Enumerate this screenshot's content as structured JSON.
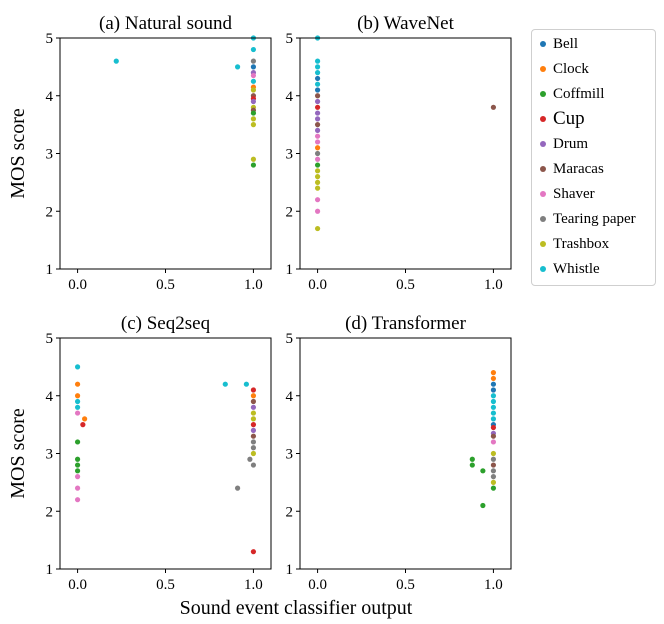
{
  "figure": {
    "xlabel": "Sound event classifier output",
    "legend_entries": [
      "Bell",
      "Clock",
      "Coffmill",
      "Cup",
      "Drum",
      "Maracas",
      "Shaver",
      "Tearing paper",
      "Trashbox",
      "Whistle"
    ],
    "legend_colors": [
      "#1f77b4",
      "#ff7f0e",
      "#2ca02c",
      "#d62728",
      "#9467bd",
      "#8c564b",
      "#e377c2",
      "#7f7f7f",
      "#bcbd22",
      "#17becf"
    ],
    "legend_placement": "right"
  },
  "chart_data": [
    {
      "type": "scatter",
      "title": "(a) Natural sound",
      "xlabel": "",
      "ylabel": "MOS score",
      "xlim": [
        -0.1,
        1.1
      ],
      "ylim": [
        1,
        5
      ],
      "xticks": [
        "0.0",
        "0.5",
        "1.0"
      ],
      "yticks": [
        "1",
        "2",
        "3",
        "4",
        "5"
      ],
      "grid": false,
      "points": [
        {
          "series": "Whistle",
          "x": 0.22,
          "y": 4.6
        },
        {
          "series": "Whistle",
          "x": 0.91,
          "y": 4.5
        },
        {
          "series": "Whistle",
          "x": 1.0,
          "y": 5.0
        },
        {
          "series": "Whistle",
          "x": 1.0,
          "y": 4.8
        },
        {
          "series": "Tearing paper",
          "x": 1.0,
          "y": 4.6
        },
        {
          "series": "Bell",
          "x": 1.0,
          "y": 4.5
        },
        {
          "series": "Drum",
          "x": 1.0,
          "y": 4.4
        },
        {
          "series": "Shaver",
          "x": 1.0,
          "y": 4.35
        },
        {
          "series": "Whistle",
          "x": 1.0,
          "y": 4.25
        },
        {
          "series": "Clock",
          "x": 1.0,
          "y": 4.15
        },
        {
          "series": "Trashbox",
          "x": 1.0,
          "y": 4.1
        },
        {
          "series": "Maracas",
          "x": 1.0,
          "y": 4.0
        },
        {
          "series": "Cup",
          "x": 1.0,
          "y": 3.95
        },
        {
          "series": "Drum",
          "x": 1.0,
          "y": 3.9
        },
        {
          "series": "Trashbox",
          "x": 1.0,
          "y": 3.8
        },
        {
          "series": "Maracas",
          "x": 1.0,
          "y": 3.75
        },
        {
          "series": "Coffmill",
          "x": 1.0,
          "y": 3.7
        },
        {
          "series": "Trashbox",
          "x": 1.0,
          "y": 3.6
        },
        {
          "series": "Trashbox",
          "x": 1.0,
          "y": 3.5
        },
        {
          "series": "Trashbox",
          "x": 1.0,
          "y": 2.9
        },
        {
          "series": "Coffmill",
          "x": 1.0,
          "y": 2.8
        }
      ]
    },
    {
      "type": "scatter",
      "title": "(b) WaveNet",
      "xlabel": "",
      "ylabel": "",
      "xlim": [
        -0.1,
        1.1
      ],
      "ylim": [
        1,
        5
      ],
      "xticks": [
        "0.0",
        "0.5",
        "1.0"
      ],
      "yticks": [
        "1",
        "2",
        "3",
        "4",
        "5"
      ],
      "grid": false,
      "points": [
        {
          "series": "Whistle",
          "x": 0.0,
          "y": 5.0
        },
        {
          "series": "Whistle",
          "x": 0.0,
          "y": 4.6
        },
        {
          "series": "Whistle",
          "x": 0.0,
          "y": 4.5
        },
        {
          "series": "Whistle",
          "x": 0.0,
          "y": 4.4
        },
        {
          "series": "Bell",
          "x": 0.0,
          "y": 4.3
        },
        {
          "series": "Whistle",
          "x": 0.0,
          "y": 4.2
        },
        {
          "series": "Bell",
          "x": 0.0,
          "y": 4.1
        },
        {
          "series": "Maracas",
          "x": 0.0,
          "y": 4.0
        },
        {
          "series": "Drum",
          "x": 0.0,
          "y": 3.9
        },
        {
          "series": "Cup",
          "x": 0.0,
          "y": 3.8
        },
        {
          "series": "Drum",
          "x": 0.0,
          "y": 3.7
        },
        {
          "series": "Drum",
          "x": 0.0,
          "y": 3.6
        },
        {
          "series": "Maracas",
          "x": 0.0,
          "y": 3.5
        },
        {
          "series": "Drum",
          "x": 0.0,
          "y": 3.4
        },
        {
          "series": "Shaver",
          "x": 0.0,
          "y": 3.3
        },
        {
          "series": "Shaver",
          "x": 0.0,
          "y": 3.2
        },
        {
          "series": "Clock",
          "x": 0.0,
          "y": 3.1
        },
        {
          "series": "Tearing paper",
          "x": 0.0,
          "y": 3.0
        },
        {
          "series": "Shaver",
          "x": 0.0,
          "y": 2.9
        },
        {
          "series": "Coffmill",
          "x": 0.0,
          "y": 2.8
        },
        {
          "series": "Trashbox",
          "x": 0.0,
          "y": 2.7
        },
        {
          "series": "Trashbox",
          "x": 0.0,
          "y": 2.6
        },
        {
          "series": "Trashbox",
          "x": 0.0,
          "y": 2.5
        },
        {
          "series": "Trashbox",
          "x": 0.0,
          "y": 2.4
        },
        {
          "series": "Shaver",
          "x": 0.0,
          "y": 2.2
        },
        {
          "series": "Shaver",
          "x": 0.0,
          "y": 2.0
        },
        {
          "series": "Trashbox",
          "x": 0.0,
          "y": 1.7
        },
        {
          "series": "Maracas",
          "x": 1.0,
          "y": 3.8
        }
      ]
    },
    {
      "type": "scatter",
      "title": "(c) Seq2seq",
      "xlabel": "",
      "ylabel": "MOS score",
      "xlim": [
        -0.1,
        1.1
      ],
      "ylim": [
        1,
        5
      ],
      "xticks": [
        "0.0",
        "0.5",
        "1.0"
      ],
      "yticks": [
        "1",
        "2",
        "3",
        "4",
        "5"
      ],
      "grid": false,
      "points": [
        {
          "series": "Whistle",
          "x": 0.0,
          "y": 4.5
        },
        {
          "series": "Clock",
          "x": 0.0,
          "y": 4.2
        },
        {
          "series": "Clock",
          "x": 0.0,
          "y": 4.0
        },
        {
          "series": "Whistle",
          "x": 0.0,
          "y": 3.9
        },
        {
          "series": "Whistle",
          "x": 0.0,
          "y": 3.8
        },
        {
          "series": "Shaver",
          "x": 0.0,
          "y": 3.7
        },
        {
          "series": "Coffmill",
          "x": 0.0,
          "y": 3.2
        },
        {
          "series": "Coffmill",
          "x": 0.0,
          "y": 2.9
        },
        {
          "series": "Coffmill",
          "x": 0.0,
          "y": 2.8
        },
        {
          "series": "Coffmill",
          "x": 0.0,
          "y": 2.7
        },
        {
          "series": "Shaver",
          "x": 0.0,
          "y": 2.6
        },
        {
          "series": "Shaver",
          "x": 0.0,
          "y": 2.4
        },
        {
          "series": "Shaver",
          "x": 0.0,
          "y": 2.2
        },
        {
          "series": "Clock",
          "x": 0.04,
          "y": 3.6
        },
        {
          "series": "Cup",
          "x": 0.03,
          "y": 3.5
        },
        {
          "series": "Whistle",
          "x": 0.84,
          "y": 4.2
        },
        {
          "series": "Whistle",
          "x": 0.96,
          "y": 4.2
        },
        {
          "series": "Tearing paper",
          "x": 0.91,
          "y": 2.4
        },
        {
          "series": "Cup",
          "x": 1.0,
          "y": 4.1
        },
        {
          "series": "Clock",
          "x": 1.0,
          "y": 4.0
        },
        {
          "series": "Maracas",
          "x": 1.0,
          "y": 3.9
        },
        {
          "series": "Drum",
          "x": 1.0,
          "y": 3.8
        },
        {
          "series": "Trashbox",
          "x": 1.0,
          "y": 3.7
        },
        {
          "series": "Trashbox",
          "x": 1.0,
          "y": 3.6
        },
        {
          "series": "Cup",
          "x": 1.0,
          "y": 3.5
        },
        {
          "series": "Drum",
          "x": 1.0,
          "y": 3.4
        },
        {
          "series": "Maracas",
          "x": 1.0,
          "y": 3.3
        },
        {
          "series": "Tearing paper",
          "x": 1.0,
          "y": 3.2
        },
        {
          "series": "Tearing paper",
          "x": 1.0,
          "y": 3.1
        },
        {
          "series": "Trashbox",
          "x": 1.0,
          "y": 3.0
        },
        {
          "series": "Tearing paper",
          "x": 0.98,
          "y": 2.9
        },
        {
          "series": "Tearing paper",
          "x": 1.0,
          "y": 2.8
        },
        {
          "series": "Cup",
          "x": 1.0,
          "y": 1.3
        }
      ]
    },
    {
      "type": "scatter",
      "title": "(d) Transformer",
      "xlabel": "",
      "ylabel": "",
      "xlim": [
        -0.1,
        1.1
      ],
      "ylim": [
        1,
        5
      ],
      "xticks": [
        "0.0",
        "0.5",
        "1.0"
      ],
      "yticks": [
        "1",
        "2",
        "3",
        "4",
        "5"
      ],
      "grid": false,
      "points": [
        {
          "series": "Coffmill",
          "x": 0.88,
          "y": 2.9
        },
        {
          "series": "Coffmill",
          "x": 0.88,
          "y": 2.8
        },
        {
          "series": "Coffmill",
          "x": 0.94,
          "y": 2.7
        },
        {
          "series": "Coffmill",
          "x": 0.94,
          "y": 2.1
        },
        {
          "series": "Clock",
          "x": 1.0,
          "y": 4.4
        },
        {
          "series": "Clock",
          "x": 1.0,
          "y": 4.3
        },
        {
          "series": "Bell",
          "x": 1.0,
          "y": 4.2
        },
        {
          "series": "Bell",
          "x": 1.0,
          "y": 4.1
        },
        {
          "series": "Whistle",
          "x": 1.0,
          "y": 4.0
        },
        {
          "series": "Whistle",
          "x": 1.0,
          "y": 3.9
        },
        {
          "series": "Whistle",
          "x": 1.0,
          "y": 3.8
        },
        {
          "series": "Whistle",
          "x": 1.0,
          "y": 3.7
        },
        {
          "series": "Whistle",
          "x": 1.0,
          "y": 3.6
        },
        {
          "series": "Bell",
          "x": 1.0,
          "y": 3.5
        },
        {
          "series": "Cup",
          "x": 1.0,
          "y": 3.45
        },
        {
          "series": "Drum",
          "x": 1.0,
          "y": 3.35
        },
        {
          "series": "Maracas",
          "x": 1.0,
          "y": 3.3
        },
        {
          "series": "Shaver",
          "x": 1.0,
          "y": 3.2
        },
        {
          "series": "Trashbox",
          "x": 1.0,
          "y": 3.0
        },
        {
          "series": "Tearing paper",
          "x": 1.0,
          "y": 2.9
        },
        {
          "series": "Maracas",
          "x": 1.0,
          "y": 2.8
        },
        {
          "series": "Tearing paper",
          "x": 1.0,
          "y": 2.7
        },
        {
          "series": "Tearing paper",
          "x": 1.0,
          "y": 2.6
        },
        {
          "series": "Trashbox",
          "x": 1.0,
          "y": 2.5
        },
        {
          "series": "Coffmill",
          "x": 1.0,
          "y": 2.4
        }
      ]
    }
  ]
}
